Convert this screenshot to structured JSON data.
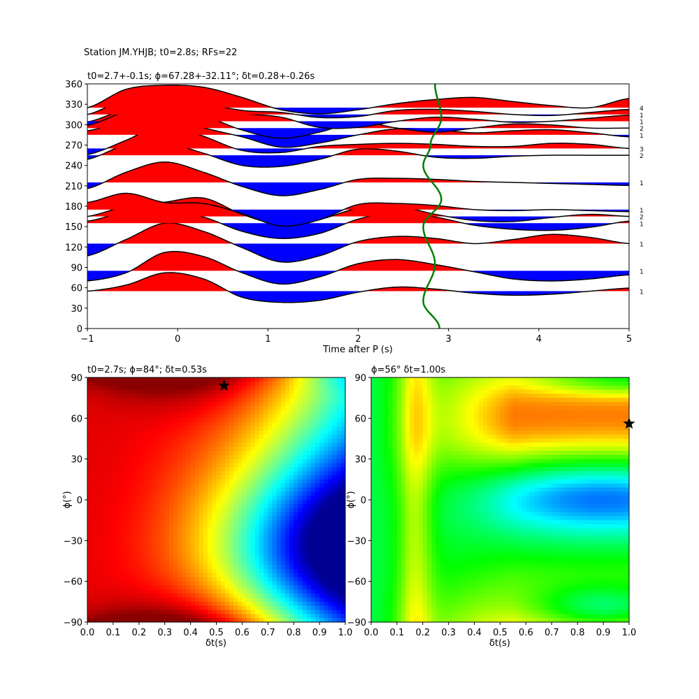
{
  "figure": {
    "suptitle": "Station JM.YHJB; t0=2.8s; RFs=22"
  },
  "chart_data": [
    {
      "type": "line",
      "title": "t0=2.7+-0.1s; ϕ=67.28+-32.11°; δt=0.28+-0.26s",
      "xlabel": "Time after P (s)",
      "ylabel": "",
      "xlim": [
        -1,
        5
      ],
      "ylim": [
        0,
        360
      ],
      "xticks": [
        -1,
        0,
        1,
        2,
        3,
        4,
        5
      ],
      "xtick_labels": [
        "−1",
        "0",
        "1",
        "2",
        "3",
        "4",
        "5"
      ],
      "yticks": [
        0,
        30,
        60,
        90,
        120,
        150,
        180,
        210,
        240,
        270,
        300,
        330,
        360
      ],
      "yticks_labels": [
        "0",
        "30",
        "60",
        "90",
        "120",
        "150",
        "180",
        "210",
        "240",
        "270",
        "300",
        "330",
        "360"
      ],
      "positive_fill": "#ff0000",
      "negative_fill": "#0000ff",
      "time_marker_color": "#008000",
      "traces": [
        {
          "baz": 55,
          "count": "1",
          "amps": [
            0.0,
            0.3,
            0.9,
            0.6,
            -0.3,
            -0.55,
            -0.45,
            -0.05,
            0.2,
            0.1,
            -0.1,
            -0.2,
            -0.15,
            0.0,
            0.15
          ]
        },
        {
          "baz": 85,
          "count": "1",
          "amps": [
            -0.5,
            -0.1,
            0.9,
            0.7,
            -0.1,
            -0.65,
            -0.3,
            0.35,
            0.55,
            0.3,
            -0.05,
            -0.4,
            -0.5,
            -0.4,
            -0.2
          ]
        },
        {
          "baz": 125,
          "count": "1",
          "amps": [
            -0.6,
            0.2,
            1.0,
            0.6,
            -0.2,
            -0.9,
            -0.6,
            0.1,
            0.35,
            0.25,
            0.0,
            0.2,
            0.45,
            0.3,
            0.0
          ]
        },
        {
          "baz": 155,
          "count": "1",
          "amps": [
            0.1,
            0.55,
            0.6,
            0.3,
            -0.4,
            -0.75,
            -0.5,
            0.2,
            0.55,
            0.3,
            -0.1,
            -0.3,
            -0.35,
            -0.2,
            0.1
          ]
        },
        {
          "baz": 165,
          "count": "2",
          "amps": [
            0.0,
            0.5,
            0.7,
            0.9,
            0.1,
            -0.4,
            -0.15,
            0.4,
            0.5,
            0.1,
            -0.2,
            -0.25,
            -0.05,
            0.1,
            0.0
          ]
        },
        {
          "baz": 175,
          "count": "1",
          "amps": [
            0.35,
            0.8,
            0.35,
            0.3,
            -0.2,
            -0.8,
            -0.5,
            0.25,
            0.3,
            0.2,
            0.0,
            -0.05,
            0.0,
            -0.05,
            -0.1
          ]
        },
        {
          "baz": 215,
          "count": "1",
          "amps": [
            -0.3,
            0.5,
            1.0,
            0.5,
            -0.2,
            -0.65,
            -0.35,
            0.15,
            0.2,
            0.15,
            0.05,
            0.0,
            -0.05,
            -0.1,
            -0.15
          ]
        },
        {
          "baz": 255,
          "count": "2",
          "amps": [
            -0.2,
            0.5,
            0.6,
            0.1,
            -0.5,
            -0.55,
            -0.2,
            0.3,
            0.2,
            -0.1,
            -0.15,
            -0.05,
            0.0,
            0.0,
            0.0
          ]
        },
        {
          "baz": 265,
          "count": "3",
          "amps": [
            -0.3,
            0.4,
            1.2,
            0.6,
            -0.1,
            -0.2,
            0.1,
            0.2,
            0.25,
            0.2,
            0.1,
            0.1,
            0.25,
            0.2,
            0.0
          ]
        },
        {
          "baz": 285,
          "count": "1",
          "amps": [
            0.2,
            0.7,
            0.9,
            0.35,
            -0.1,
            -0.6,
            -0.4,
            0.0,
            0.3,
            0.25,
            0.1,
            0.2,
            0.25,
            0.1,
            -0.1
          ]
        },
        {
          "baz": 295,
          "count": "2",
          "amps": [
            0.3,
            0.9,
            0.9,
            0.6,
            -0.1,
            -0.5,
            -0.2,
            0.3,
            0.0,
            -0.2,
            0.0,
            0.2,
            0.15,
            0.0,
            0.0
          ]
        },
        {
          "baz": 305,
          "count": "1",
          "amps": [
            -0.2,
            0.5,
            1.0,
            0.8,
            0.4,
            0.2,
            -0.3,
            -0.3,
            0.0,
            0.2,
            0.1,
            -0.05,
            0.0,
            0.15,
            0.3
          ]
        },
        {
          "baz": 315,
          "count": "1",
          "amps": [
            0.0,
            0.8,
            1.3,
            0.6,
            0.2,
            0.1,
            -0.15,
            -0.1,
            0.2,
            0.25,
            0.15,
            0.0,
            -0.05,
            0.1,
            0.25
          ]
        },
        {
          "baz": 325,
          "count": "4",
          "amps": [
            0.0,
            0.9,
            1.1,
            1.0,
            0.5,
            -0.1,
            -0.3,
            -0.1,
            0.2,
            0.4,
            0.5,
            0.3,
            0.1,
            0.0,
            0.45
          ]
        }
      ],
      "time_marker": [
        {
          "t": 2.9,
          "y": 0
        },
        {
          "t": 2.72,
          "y": 40
        },
        {
          "t": 2.85,
          "y": 95
        },
        {
          "t": 2.72,
          "y": 150
        },
        {
          "t": 2.92,
          "y": 190
        },
        {
          "t": 2.72,
          "y": 240
        },
        {
          "t": 2.8,
          "y": 270
        },
        {
          "t": 2.92,
          "y": 310
        },
        {
          "t": 2.85,
          "y": 360
        }
      ]
    },
    {
      "type": "heatmap",
      "title": "t0=2.7s; ϕ=84°; δt=0.53s",
      "xlabel": "δt(s)",
      "ylabel": "ϕ(°)",
      "xlim": [
        0,
        1
      ],
      "ylim": [
        -90,
        90
      ],
      "xticks": [
        0,
        0.1,
        0.2,
        0.3,
        0.4,
        0.5,
        0.6,
        0.7,
        0.8,
        0.9,
        1.0
      ],
      "xtick_labels": [
        "0.0",
        "0.1",
        "0.2",
        "0.3",
        "0.4",
        "0.5",
        "0.6",
        "0.7",
        "0.8",
        "0.9",
        "1.0"
      ],
      "yticks": [
        -90,
        -60,
        -30,
        0,
        30,
        60,
        90
      ],
      "ytick_labels": [
        "−90",
        "−60",
        "−30",
        "0",
        "30",
        "60",
        "90"
      ],
      "colormap": "jet",
      "best": {
        "dt": 0.53,
        "phi": 84
      }
    },
    {
      "type": "heatmap",
      "title": "ϕ=56° δt=1.00s",
      "xlabel": "δt(s)",
      "ylabel": "ϕ(°)",
      "xlim": [
        0,
        1
      ],
      "ylim": [
        -90,
        90
      ],
      "xticks": [
        0,
        0.1,
        0.2,
        0.3,
        0.4,
        0.5,
        0.6,
        0.7,
        0.8,
        0.9,
        1.0
      ],
      "xtick_labels": [
        "0.0",
        "0.1",
        "0.2",
        "0.3",
        "0.4",
        "0.5",
        "0.6",
        "0.7",
        "0.8",
        "0.9",
        "1.0"
      ],
      "yticks": [
        -90,
        -60,
        -30,
        0,
        30,
        60,
        90
      ],
      "ytick_labels": [
        "−90",
        "−60",
        "−30",
        "0",
        "30",
        "60",
        "90"
      ],
      "colormap": "hsv",
      "best": {
        "dt": 1.0,
        "phi": 56
      }
    }
  ]
}
